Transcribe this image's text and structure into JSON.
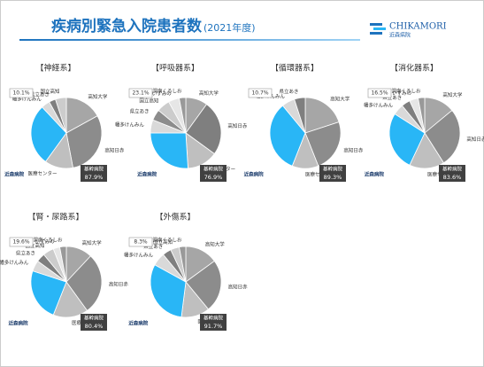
{
  "header": {
    "title": "疾病別緊急入院患者数",
    "subtitle": "(2021年度)",
    "logo": "CHIKAMORI",
    "logo_sub": "近森病院"
  },
  "chart_data": [
    {
      "type": "pie",
      "title": "【神経系】",
      "callout": "10.1%",
      "box_label": "基幹病院",
      "box_value": "87.9%",
      "categories": [
        "高知大学",
        "高知日赤",
        "医療センター",
        "近森病院",
        "幡多けんみん",
        "県立あき",
        "国立高知"
      ],
      "values": [
        17,
        30,
        13,
        28,
        4,
        3,
        5
      ],
      "colors": [
        "#a6a6a6",
        "#8c8c8c",
        "#bfbfbf",
        "#29b6f6",
        "#d9d9d9",
        "#7f7f7f",
        "#cccccc"
      ]
    },
    {
      "type": "pie",
      "title": "【呼吸器系】",
      "callout": "23.1%",
      "box_label": "基幹病院",
      "box_value": "76.9%",
      "categories": [
        "高知大学",
        "高知日赤",
        "医療センター",
        "近森病院",
        "幡多けんみん",
        "県立あき",
        "国立高知",
        "いずみの",
        "渭南くろしお"
      ],
      "values": [
        10,
        25,
        14,
        26,
        6,
        5,
        6,
        5,
        3
      ],
      "colors": [
        "#a6a6a6",
        "#7f7f7f",
        "#bfbfbf",
        "#29b6f6",
        "#d9d9d9",
        "#8c8c8c",
        "#cccccc",
        "#e6e6e6",
        "#999999"
      ]
    },
    {
      "type": "pie",
      "title": "【循環器系】",
      "callout": "10.7%",
      "box_label": "基幹病院",
      "box_value": "89.3%",
      "categories": [
        "高知大学",
        "高知日赤",
        "医療センター",
        "近森病院",
        "幡多けんみん",
        "県立あき"
      ],
      "values": [
        20,
        24,
        12,
        33,
        6,
        5
      ],
      "colors": [
        "#a6a6a6",
        "#8c8c8c",
        "#bfbfbf",
        "#29b6f6",
        "#d9d9d9",
        "#7f7f7f"
      ]
    },
    {
      "type": "pie",
      "title": "【消化器系】",
      "callout": "16.5%",
      "box_label": "基幹病院",
      "box_value": "83.6%",
      "categories": [
        "高知大学",
        "高知日赤",
        "医療センター",
        "近森病院",
        "幡多けんみん",
        "県立あき",
        "いずみの",
        "渭南くろしお"
      ],
      "values": [
        14,
        27,
        16,
        27,
        5,
        4,
        4,
        3
      ],
      "colors": [
        "#a6a6a6",
        "#8c8c8c",
        "#bfbfbf",
        "#29b6f6",
        "#d9d9d9",
        "#7f7f7f",
        "#e6e6e6",
        "#999999"
      ]
    },
    {
      "type": "pie",
      "title": "【腎・尿路系】",
      "callout": "19.6%",
      "box_label": "基幹病院",
      "box_value": "80.4%",
      "categories": [
        "高知大学",
        "高知日赤",
        "医療センター",
        "近森病院",
        "幡多けんみん",
        "県立あき",
        "国立高知",
        "いずみの",
        "渭南くろしお"
      ],
      "values": [
        12,
        28,
        16,
        24,
        5,
        4,
        5,
        3,
        3
      ],
      "colors": [
        "#a6a6a6",
        "#8c8c8c",
        "#bfbfbf",
        "#29b6f6",
        "#d9d9d9",
        "#7f7f7f",
        "#cccccc",
        "#e6e6e6",
        "#999999"
      ]
    },
    {
      "type": "pie",
      "title": "【外傷系】",
      "callout": "8.3%",
      "box_label": "基幹病院",
      "box_value": "91.7%",
      "categories": [
        "高知大学",
        "高知日赤",
        "医療センター",
        "近森病院",
        "幡多けんみん",
        "県立あき",
        "国立高知",
        "渭南くろしお"
      ],
      "values": [
        15,
        24,
        13,
        31,
        6,
        4,
        4,
        3
      ],
      "colors": [
        "#a6a6a6",
        "#8c8c8c",
        "#bfbfbf",
        "#29b6f6",
        "#d9d9d9",
        "#7f7f7f",
        "#cccccc",
        "#999999"
      ]
    }
  ]
}
